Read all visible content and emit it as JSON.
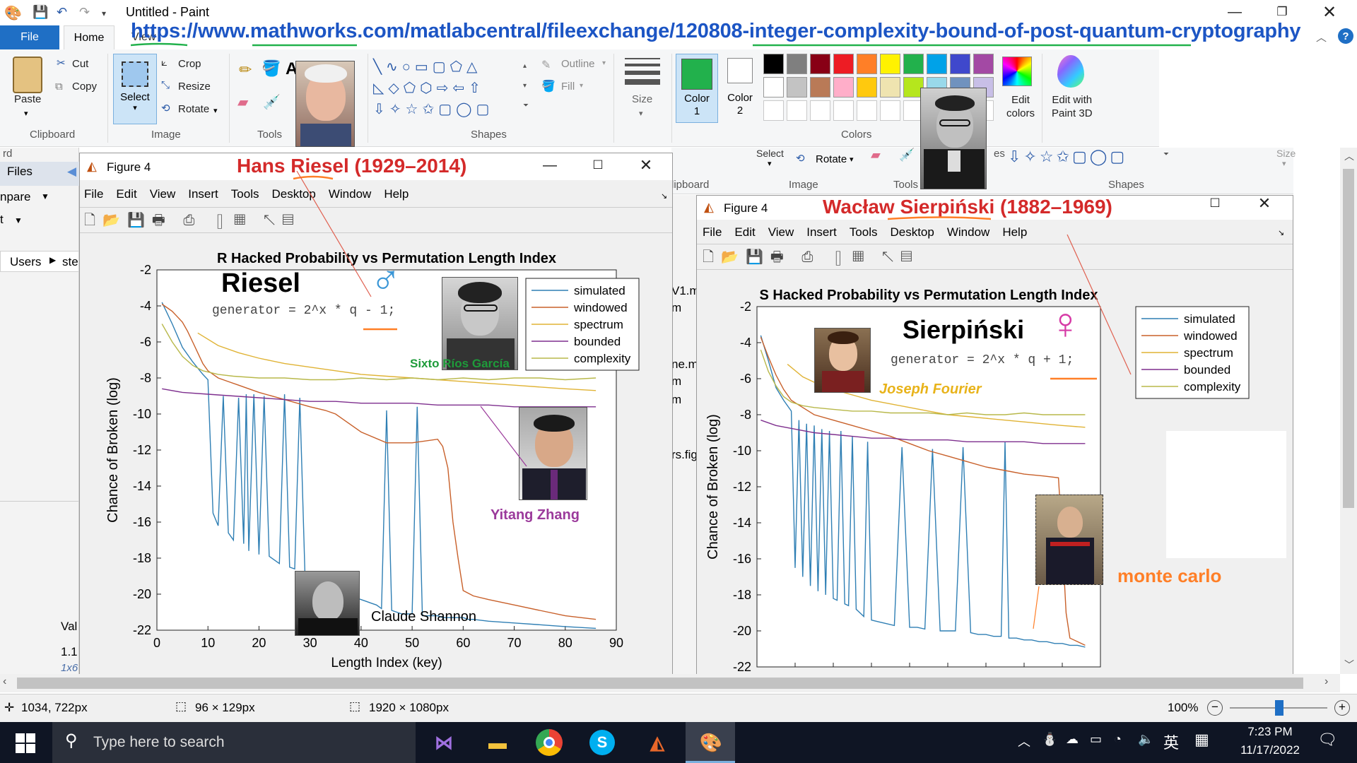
{
  "window": {
    "title": "Untitled - Paint"
  },
  "overlay_url": "https://www.mathworks.com/matlabcentral/fileexchange/120808-integer-complexity-bound-of-post-quantum-cryptography",
  "tabs": {
    "file": "File",
    "home": "Home",
    "view": "View"
  },
  "ribbon": {
    "clipboard": {
      "paste": "Paste",
      "cut": "Cut",
      "copy": "Copy",
      "label": "Clipboard"
    },
    "image": {
      "select": "Select",
      "crop": "Crop",
      "resize": "Resize",
      "rotate": "Rotate",
      "label": "Image"
    },
    "tools": {
      "label": "Tools"
    },
    "shapes": {
      "outline": "Outline",
      "fill": "Fill",
      "label": "Shapes"
    },
    "size": "Size",
    "color1": "Color\n1",
    "color2": "Color\n2",
    "colors_label": "Colors",
    "edit_colors": "Edit\ncolors",
    "edit_paint3d": "Edit with\nPaint 3D",
    "palette": [
      "#000000",
      "#7f7f7f",
      "#880015",
      "#ed1c24",
      "#ff7f27",
      "#fff200",
      "#22b14c",
      "#00a2e8",
      "#3f48cc",
      "#a349a4",
      "#ffffff",
      "#c3c3c3",
      "#b97a57",
      "#ffaec9",
      "#ffc90e",
      "#efe4b0",
      "#b5e61d",
      "#99d9ea",
      "#7092be",
      "#c8bfe7"
    ],
    "color1_hex": "#22b14c"
  },
  "bg_app": {
    "files": "Files",
    "compare": "npare",
    "users": "Users",
    "ste": "ste",
    "rd": "rd",
    "val": "Val",
    "val1": "1.1",
    "val2": "1x6",
    "v1": "V1.m",
    "m": "m",
    "nem": "ne.m",
    "m2": "m",
    "m3": "m",
    "rsfig": "rs.fig"
  },
  "bg_ribbon2": {
    "select": "Select",
    "rotate": "Rotate",
    "clipboard": "lipboard",
    "image": "Image",
    "tools": "Tools",
    "shapes": "Shapes",
    "size": "Size",
    "es": "es"
  },
  "fig_left": {
    "title": "Figure 4",
    "overlay_name": "Hans Riesel (1929–2014)",
    "menu": [
      "File",
      "Edit",
      "View",
      "Insert",
      "Tools",
      "Desktop",
      "Window",
      "Help"
    ],
    "plot_title": "R Hacked Probability vs Permutation Length Index",
    "xlabel": "Length Index (key)",
    "ylabel": "Chance of Broken (log)",
    "heading": "Riesel",
    "generator": "generator = 2^x * q - 1;",
    "gender": "♂",
    "captions": {
      "sixto": "Sixto Ríos García",
      "zhang": "Yitang Zhang",
      "shannon": "Claude Shannon"
    }
  },
  "fig_right": {
    "title": "Figure 4",
    "overlay_name": "Wacław Sierpiński (1882–1969)",
    "menu": [
      "File",
      "Edit",
      "View",
      "Insert",
      "Tools",
      "Desktop",
      "Window",
      "Help"
    ],
    "plot_title": "S Hacked Probability vs Permutation Length Index",
    "ylabel": "Chance of Broken (log)",
    "heading": "Sierpiński",
    "generator": "generator = 2^x * q + 1;",
    "gender": "♀",
    "captions": {
      "fourier": "Joseph Fourier",
      "montecarlo": "monte carlo"
    }
  },
  "chart_data": [
    {
      "type": "line",
      "title": "R Hacked Probability vs Permutation Length Index",
      "xlabel": "Length Index (key)",
      "ylabel": "Chance of Broken (log)",
      "xlim": [
        0,
        90
      ],
      "ylim": [
        -22,
        -2
      ],
      "xticks": [
        0,
        10,
        20,
        30,
        40,
        50,
        60,
        70,
        80,
        90
      ],
      "yticks": [
        -2,
        -4,
        -6,
        -8,
        -10,
        -12,
        -14,
        -16,
        -18,
        -20,
        -22
      ],
      "legend": "top-right",
      "series": [
        {
          "name": "simulated",
          "color": "#2f7fb4",
          "x": [
            1,
            3,
            5,
            7,
            9,
            10,
            11,
            12,
            13,
            14,
            15,
            16,
            17,
            17.5,
            18,
            19,
            20,
            21,
            22,
            23,
            24,
            25,
            26,
            27,
            28,
            29,
            30,
            31,
            32,
            33,
            34,
            35,
            36,
            37,
            38,
            39,
            40,
            41,
            42,
            43,
            44,
            45,
            46,
            47,
            48,
            49,
            50,
            51,
            52,
            53,
            54,
            55,
            56,
            57,
            58,
            59,
            60,
            61,
            62,
            65,
            70,
            75,
            80,
            86
          ],
          "y": [
            -3.8,
            -5,
            -6.3,
            -7.1,
            -7.8,
            -8.1,
            -15.5,
            -16.2,
            -9,
            -16.6,
            -17,
            -9.1,
            -17.2,
            -8.9,
            -17.6,
            -8.9,
            -17.8,
            -9.0,
            -17.9,
            -18.1,
            -18.3,
            -8.9,
            -18.5,
            -18.6,
            -9.1,
            -18.8,
            -19,
            -19.2,
            -19.4,
            -19.6,
            -19.7,
            -19.8,
            -19.9,
            -20,
            -20.1,
            -20.2,
            -20.3,
            -20.4,
            -20.5,
            -20.6,
            -20.8,
            -9.8,
            -20.9,
            -21.0,
            -21.1,
            -21.1,
            -21.1,
            -9.6,
            -21.2,
            -21.2,
            -21.2,
            -21.2,
            -21.3,
            -21.3,
            -21.3,
            -21.3,
            -21.3,
            -21.4,
            -21.4,
            -21.5,
            -21.6,
            -21.7,
            -21.8,
            -21.9
          ]
        },
        {
          "name": "windowed",
          "color": "#c8602a",
          "x": [
            1,
            2,
            3,
            4,
            5,
            6,
            7,
            8,
            9,
            10,
            12,
            14,
            16,
            18,
            20,
            25,
            30,
            33,
            35,
            37,
            40,
            45,
            50,
            55,
            56,
            57,
            58,
            59,
            60,
            62,
            65,
            70,
            75,
            80,
            86
          ],
          "y": [
            -3.9,
            -4.1,
            -4.3,
            -4.6,
            -4.9,
            -5.4,
            -6.0,
            -6.6,
            -7.2,
            -7.6,
            -8.0,
            -8.2,
            -8.4,
            -8.6,
            -8.8,
            -9.2,
            -9.6,
            -9.8,
            -10.0,
            -10.4,
            -11.0,
            -11.6,
            -11.6,
            -11.4,
            -11.8,
            -13,
            -16,
            -18,
            -19.8,
            -20.1,
            -20.3,
            -20.6,
            -20.9,
            -21.2,
            -21.4
          ]
        },
        {
          "name": "spectrum",
          "color": "#e0b335",
          "x": [
            8,
            12,
            16,
            20,
            25,
            30,
            35,
            40,
            45,
            50,
            55,
            60,
            65,
            70,
            75,
            80,
            86
          ],
          "y": [
            -5.5,
            -6.2,
            -6.6,
            -6.9,
            -7.2,
            -7.4,
            -7.6,
            -7.8,
            -7.9,
            -8.0,
            -8.1,
            -8.2,
            -8.3,
            -8.4,
            -8.5,
            -8.6,
            -8.7
          ]
        },
        {
          "name": "bounded",
          "color": "#7e2f8e",
          "x": [
            1,
            5,
            10,
            15,
            20,
            25,
            30,
            35,
            40,
            45,
            50,
            55,
            60,
            65,
            70,
            75,
            80,
            86
          ],
          "y": [
            -8.6,
            -8.8,
            -8.9,
            -9.0,
            -9.1,
            -9.2,
            -9.3,
            -9.3,
            -9.4,
            -9.4,
            -9.4,
            -9.5,
            -9.5,
            -9.5,
            -9.6,
            -9.6,
            -9.6,
            -9.6
          ]
        },
        {
          "name": "complexity",
          "color": "#b8b84a",
          "x": [
            1,
            3,
            5,
            7,
            9,
            12,
            15,
            20,
            25,
            30,
            35,
            40,
            45,
            50,
            55,
            60,
            65,
            70,
            75,
            80,
            86
          ],
          "y": [
            -5.0,
            -6.0,
            -6.8,
            -7.3,
            -7.6,
            -7.8,
            -7.9,
            -8.0,
            -8.0,
            -8.1,
            -8.1,
            -8.0,
            -8.1,
            -8.0,
            -8.1,
            -8.0,
            -8.1,
            -8.0,
            -8.0,
            -8.1,
            -8.0
          ]
        }
      ]
    },
    {
      "type": "line",
      "title": "S Hacked Probability vs Permutation Length Index",
      "xlabel": "",
      "ylabel": "Chance of Broken (log)",
      "xlim": [
        0,
        90
      ],
      "ylim": [
        -22,
        -2
      ],
      "yticks": [
        -2,
        -4,
        -6,
        -8,
        -10,
        -12,
        -14,
        -16,
        -18,
        -20,
        -22
      ],
      "legend": "top-right",
      "series": [
        {
          "name": "simulated",
          "color": "#2f7fb4",
          "x": [
            1,
            3,
            5,
            7,
            9,
            10,
            11,
            12,
            13,
            14,
            15,
            16,
            17,
            18,
            19,
            20,
            21,
            22,
            23,
            24,
            25,
            26,
            27,
            28,
            29,
            30,
            32,
            34,
            36,
            38,
            40,
            42,
            44,
            46,
            48,
            50,
            52,
            54,
            56,
            58,
            60,
            62,
            64,
            65,
            66,
            68,
            70,
            72,
            74,
            76,
            78,
            80,
            82,
            84,
            86
          ],
          "y": [
            -3.6,
            -5,
            -6.5,
            -7.2,
            -7.8,
            -16.5,
            -8.3,
            -17,
            -8.5,
            -17.5,
            -8.6,
            -17.8,
            -8.8,
            -18.0,
            -8.9,
            -18.2,
            -18.3,
            -8.9,
            -18.5,
            -18.6,
            -9.2,
            -18.8,
            -19.0,
            -19.2,
            -9.5,
            -19.4,
            -19.5,
            -19.6,
            -19.7,
            -9.8,
            -19.8,
            -19.8,
            -19.9,
            -9.9,
            -20,
            -20,
            -20,
            -9.8,
            -20.1,
            -20.2,
            -20.2,
            -20.3,
            -20.3,
            -9.5,
            -20.4,
            -20.4,
            -20.5,
            -20.5,
            -20.6,
            -20.6,
            -20.7,
            -20.7,
            -20.8,
            -20.8,
            -20.9
          ]
        },
        {
          "name": "windowed",
          "color": "#c8602a",
          "x": [
            1,
            3,
            5,
            7,
            9,
            12,
            15,
            20,
            25,
            30,
            35,
            40,
            45,
            50,
            55,
            60,
            65,
            70,
            75,
            79,
            80,
            81,
            82,
            84,
            86
          ],
          "y": [
            -3.7,
            -4.8,
            -5.8,
            -6.6,
            -7.2,
            -7.6,
            -8.0,
            -8.3,
            -8.6,
            -8.9,
            -9.2,
            -9.6,
            -10.0,
            -10.3,
            -10.6,
            -10.9,
            -11.1,
            -11.3,
            -11.4,
            -11.5,
            -15,
            -19,
            -20.4,
            -20.6,
            -20.8
          ]
        },
        {
          "name": "spectrum",
          "color": "#e0b335",
          "x": [
            8,
            12,
            16,
            20,
            25,
            30,
            35,
            40,
            45,
            50,
            55,
            60,
            65,
            70,
            75,
            80,
            86
          ],
          "y": [
            -5.2,
            -5.9,
            -6.3,
            -6.6,
            -6.9,
            -7.2,
            -7.4,
            -7.6,
            -7.8,
            -8.0,
            -8.1,
            -8.2,
            -8.3,
            -8.4,
            -8.5,
            -8.6,
            -8.7
          ]
        },
        {
          "name": "bounded",
          "color": "#7e2f8e",
          "x": [
            1,
            5,
            10,
            15,
            20,
            25,
            30,
            35,
            40,
            45,
            50,
            55,
            60,
            65,
            70,
            75,
            80,
            86
          ],
          "y": [
            -8.3,
            -8.6,
            -8.8,
            -9.0,
            -9.1,
            -9.2,
            -9.3,
            -9.3,
            -9.4,
            -9.4,
            -9.4,
            -9.5,
            -9.5,
            -9.5,
            -9.5,
            -9.6,
            -9.6,
            -9.6
          ]
        },
        {
          "name": "complexity",
          "color": "#b8b84a",
          "x": [
            1,
            3,
            5,
            7,
            9,
            12,
            15,
            20,
            25,
            30,
            35,
            40,
            45,
            50,
            55,
            60,
            65,
            70,
            75,
            80,
            86
          ],
          "y": [
            -4.4,
            -5.6,
            -6.4,
            -7.0,
            -7.3,
            -7.5,
            -7.6,
            -7.7,
            -7.8,
            -7.8,
            -7.9,
            -7.9,
            -7.9,
            -8.0,
            -7.9,
            -8.0,
            -8.0,
            -7.9,
            -8.0,
            -8.0,
            -8.0
          ]
        }
      ]
    }
  ],
  "status": {
    "cursor": "1034, 722px",
    "selection": "96 × 129px",
    "canvas": "1920 × 1080px",
    "zoom": "100%"
  },
  "taskbar": {
    "search_placeholder": "Type here to search",
    "time": "7:23 PM",
    "date": "11/17/2022",
    "ime": "英"
  }
}
